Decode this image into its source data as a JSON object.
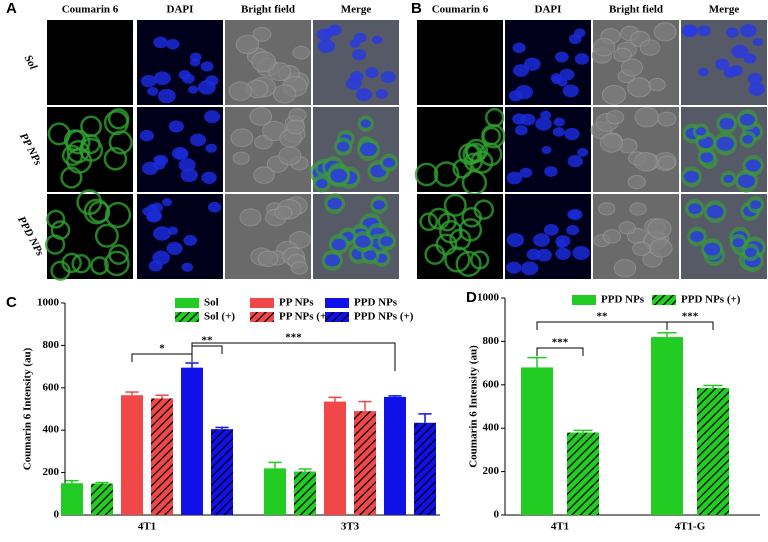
{
  "panels": {
    "A": {
      "label": "A",
      "columns": [
        "Coumarin 6",
        "DAPI",
        "Bright field",
        "Merge"
      ],
      "rows": [
        "Sol",
        "PP NPs",
        "PPD NPs"
      ]
    },
    "B": {
      "label": "B",
      "columns": [
        "Coumarin 6",
        "DAPI",
        "Bright field",
        "Merge"
      ]
    }
  },
  "chart_data": [
    {
      "type": "bar",
      "panel_label": "C",
      "y_label": "Coumarin 6 Intensity (au)",
      "categories": [
        "4T1",
        "3T3"
      ],
      "series": [
        {
          "name": "Sol",
          "color": "#22cc22",
          "hatch": false,
          "values": [
            150,
            220
          ],
          "errors": [
            12,
            28
          ]
        },
        {
          "name": "Sol (+)",
          "color": "#22cc22",
          "hatch": true,
          "values": [
            148,
            205
          ],
          "errors": [
            5,
            12
          ]
        },
        {
          "name": "PP NPs",
          "color": "#f04848",
          "hatch": false,
          "values": [
            565,
            535
          ],
          "errors": [
            15,
            20
          ]
        },
        {
          "name": "PP NPs (+)",
          "color": "#f04848",
          "hatch": true,
          "values": [
            550,
            490
          ],
          "errors": [
            15,
            45
          ]
        },
        {
          "name": "PPD NPs",
          "color": "#1010e8",
          "hatch": false,
          "values": [
            695,
            557
          ],
          "errors": [
            22,
            5
          ]
        },
        {
          "name": "PPD NPs (+)",
          "color": "#1010e8",
          "hatch": true,
          "values": [
            405,
            435
          ],
          "errors": [
            8,
            42
          ]
        }
      ],
      "ylim": [
        0,
        1000
      ],
      "yticks": [
        0,
        200,
        400,
        600,
        800,
        1000
      ],
      "annotations": [
        "*",
        "**",
        "***"
      ]
    },
    {
      "type": "bar",
      "panel_label": "D",
      "y_label": "Coumarin 6 Intensity (au)",
      "categories": [
        "4T1",
        "4T1-G"
      ],
      "series": [
        {
          "name": "PPD NPs",
          "color": "#22cc22",
          "hatch": false,
          "values": [
            680,
            820
          ],
          "errors": [
            45,
            20
          ]
        },
        {
          "name": "PPD NPs (+)",
          "color": "#22cc22",
          "hatch": true,
          "values": [
            380,
            585
          ],
          "errors": [
            10,
            12
          ]
        }
      ],
      "ylim": [
        0,
        1000
      ],
      "yticks": [
        0,
        200,
        400,
        600,
        800,
        1000
      ],
      "annotations": [
        "***",
        "**",
        "***"
      ]
    }
  ]
}
